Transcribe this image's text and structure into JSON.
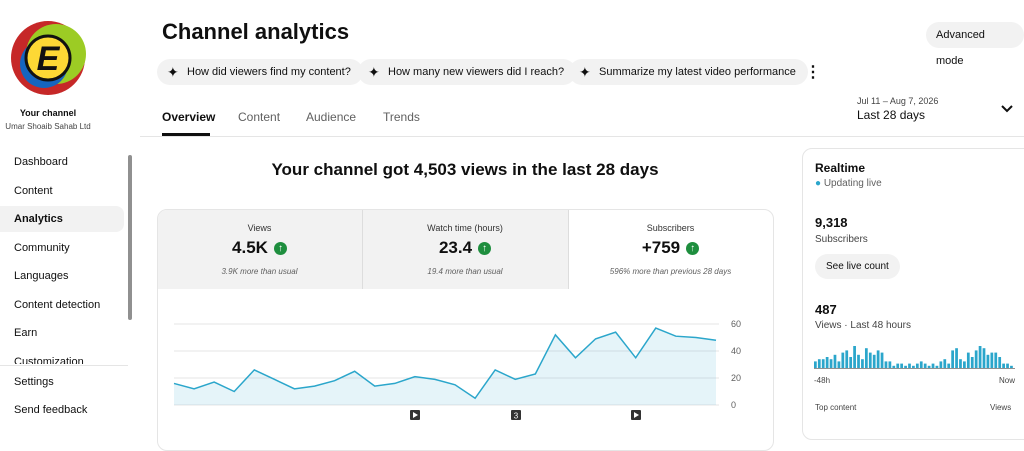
{
  "sidebar": {
    "channel_label": "Your channel",
    "channel_name": "Umar Shoaib Sahab Ltd",
    "items": [
      "Dashboard",
      "Content",
      "Analytics",
      "Community",
      "Languages",
      "Content detection",
      "Earn",
      "Customization"
    ],
    "footer_items": [
      "Settings",
      "Send feedback"
    ]
  },
  "header": {
    "title": "Channel analytics",
    "button": "Advanced mode",
    "chips": [
      "How did viewers find my content?",
      "How many new viewers did I reach?",
      "Summarize my latest video performance"
    ]
  },
  "tabs": [
    "Overview",
    "Content",
    "Audience",
    "Trends"
  ],
  "date_range": {
    "range": "Jul 11 – Aug 7, 2026",
    "label": "Last 28 days"
  },
  "headline": "Your channel got 4,503 views in the last 28 days",
  "metrics": [
    {
      "label": "Views",
      "value": "4.5K",
      "note": "3.9K more than usual"
    },
    {
      "label": "Watch time (hours)",
      "value": "23.4",
      "note": "19.4 more than usual"
    },
    {
      "label": "Subscribers",
      "value": "+759",
      "note": "596% more than previous 28 days"
    }
  ],
  "chart_data": {
    "type": "line",
    "color": "#2ba6cb",
    "values": [
      16,
      12,
      17,
      10,
      26,
      19,
      12,
      14,
      18,
      25,
      14,
      16,
      21,
      19,
      15,
      5,
      26,
      19,
      23,
      52,
      35,
      49,
      54,
      35,
      57,
      51,
      50,
      48
    ],
    "ylim": [
      0,
      63
    ],
    "yticks": [
      0,
      20,
      40,
      60
    ],
    "grid": true,
    "marker_label": "3"
  },
  "realtime": {
    "title": "Realtime",
    "status": "Updating live",
    "subscribers": "9,318",
    "subscribers_label": "Subscribers",
    "button": "See live count",
    "views": "487",
    "views_label": "Views · Last 48 hours",
    "bars": {
      "type": "bar",
      "color": "#2ba6cb",
      "values": [
        3,
        4,
        4,
        5,
        4,
        6,
        3,
        7,
        8,
        5,
        10,
        6,
        4,
        9,
        7,
        6,
        8,
        7,
        3,
        3,
        1,
        2,
        2,
        1,
        2,
        1,
        2,
        3,
        2,
        1,
        2,
        1,
        3,
        4,
        2,
        8,
        9,
        4,
        3,
        7,
        5,
        8,
        10,
        9,
        6,
        7,
        7,
        5,
        2,
        2,
        1
      ],
      "start_label": "-48h",
      "end_label": "Now"
    },
    "footer_left": "Top content",
    "footer_right": "Views"
  }
}
